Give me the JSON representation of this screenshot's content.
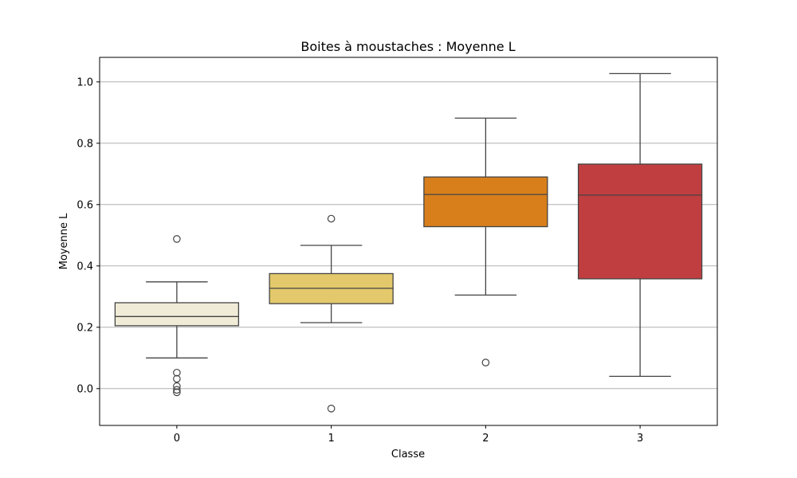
{
  "chart_data": {
    "type": "box",
    "title": "Boites à moustaches : Moyenne L",
    "xlabel": "Classe",
    "ylabel": "Moyenne L",
    "categories": [
      "0",
      "1",
      "2",
      "3"
    ],
    "ylim": [
      -0.12,
      1.08
    ],
    "yticks": [
      "0.0",
      "0.2",
      "0.4",
      "0.6",
      "0.8",
      "1.0"
    ],
    "grid": "y",
    "boxes": [
      {
        "category": "0",
        "whisker_low": 0.1,
        "q1": 0.205,
        "median": 0.235,
        "q3": 0.28,
        "whisker_high": 0.348,
        "outliers": [
          0.488,
          0.052,
          0.032,
          0.008,
          -0.004,
          -0.012
        ],
        "color": "#f0ebd7"
      },
      {
        "category": "1",
        "whisker_low": 0.215,
        "q1": 0.277,
        "median": 0.327,
        "q3": 0.375,
        "whisker_high": 0.467,
        "outliers": [
          0.554,
          -0.065
        ],
        "color": "#e3c96b"
      },
      {
        "category": "2",
        "whisker_low": 0.305,
        "q1": 0.528,
        "median": 0.633,
        "q3": 0.69,
        "whisker_high": 0.882,
        "outliers": [
          0.085
        ],
        "color": "#d87f1b"
      },
      {
        "category": "3",
        "whisker_low": 0.04,
        "q1": 0.358,
        "median": 0.631,
        "q3": 0.732,
        "whisker_high": 1.027,
        "outliers": [],
        "color": "#c13e40"
      }
    ],
    "line_color": "#444444"
  }
}
